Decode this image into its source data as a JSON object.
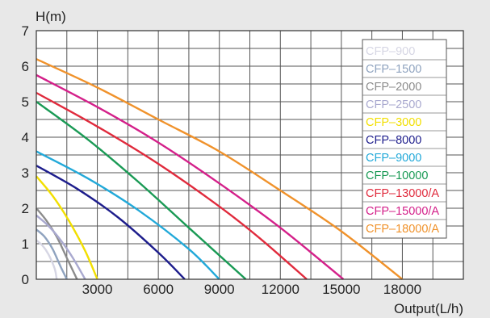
{
  "chart_data": {
    "type": "line",
    "ylabel": "H(m)",
    "xlabel": "Output(L/h)",
    "xlim": [
      0,
      21000
    ],
    "ylim": [
      0,
      7
    ],
    "x_ticks": [
      3000,
      6000,
      9000,
      12000,
      15000,
      18000
    ],
    "x_tick_labels": [
      "3000",
      "6000",
      "9000",
      "12000",
      "15000",
      "18000"
    ],
    "y_ticks": [
      0,
      1,
      2,
      3,
      4,
      5,
      6,
      7
    ],
    "y_tick_labels": [
      "0",
      "1",
      "2",
      "3",
      "4",
      "5",
      "6",
      "7"
    ],
    "grid": true,
    "legend_position": "top-right",
    "series": [
      {
        "name": "CFP–900",
        "color": "#d6d6e4",
        "x": [
          0,
          300,
          600,
          900,
          1000
        ],
        "y": [
          1.1,
          0.95,
          0.7,
          0.3,
          0
        ]
      },
      {
        "name": "CFP–1500",
        "color": "#8fa3bf",
        "x": [
          0,
          400,
          800,
          1200,
          1500
        ],
        "y": [
          1.4,
          1.2,
          0.85,
          0.35,
          0
        ]
      },
      {
        "name": "CFP–2000",
        "color": "#8c8c8c",
        "x": [
          0,
          500,
          1000,
          1500,
          2000
        ],
        "y": [
          2.0,
          1.65,
          1.2,
          0.6,
          0
        ]
      },
      {
        "name": "CFP–2500",
        "color": "#a9a9cf",
        "x": [
          0,
          600,
          1200,
          1800,
          2400
        ],
        "y": [
          1.8,
          1.5,
          1.1,
          0.6,
          0
        ]
      },
      {
        "name": "CFP–3000",
        "color": "#f2df00",
        "x": [
          0,
          800,
          1600,
          2400,
          3000
        ],
        "y": [
          2.9,
          2.35,
          1.65,
          0.8,
          0
        ]
      },
      {
        "name": "CFP–8000",
        "color": "#1d1d8c",
        "x": [
          0,
          2000,
          4000,
          6000,
          7300
        ],
        "y": [
          3.2,
          2.55,
          1.75,
          0.75,
          0
        ]
      },
      {
        "name": "CFP–9000",
        "color": "#22a9d9",
        "x": [
          0,
          2500,
          5000,
          7500,
          9000
        ],
        "y": [
          3.6,
          2.85,
          1.95,
          0.85,
          0
        ]
      },
      {
        "name": "CFP–10000",
        "color": "#1a9a55",
        "x": [
          0,
          2500,
          5000,
          7500,
          10300
        ],
        "y": [
          5.0,
          3.95,
          2.75,
          1.45,
          0
        ]
      },
      {
        "name": "CFP–13000/A",
        "color": "#e02a3c",
        "x": [
          0,
          3000,
          6000,
          9000,
          11000,
          13300
        ],
        "y": [
          5.25,
          4.3,
          3.25,
          2.05,
          1.15,
          0
        ]
      },
      {
        "name": "CFP–15000/A",
        "color": "#d4208a",
        "x": [
          0,
          3000,
          6000,
          9000,
          12000,
          15100
        ],
        "y": [
          5.75,
          4.85,
          3.85,
          2.7,
          1.45,
          0
        ]
      },
      {
        "name": "CFP–18000/A",
        "color": "#f0922b",
        "x": [
          0,
          3000,
          6000,
          9000,
          12000,
          15000,
          18000
        ],
        "y": [
          6.2,
          5.4,
          4.5,
          3.6,
          2.5,
          1.35,
          0
        ]
      }
    ]
  }
}
